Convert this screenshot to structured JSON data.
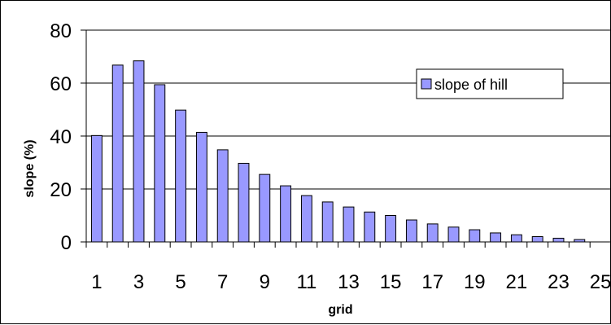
{
  "chart_data": {
    "type": "bar",
    "categories": [
      1,
      2,
      3,
      4,
      5,
      6,
      7,
      8,
      9,
      10,
      11,
      12,
      13,
      14,
      15,
      16,
      17,
      18,
      19,
      20,
      21,
      22,
      23,
      24,
      25
    ],
    "x_tick_labels": [
      "1",
      "3",
      "5",
      "7",
      "9",
      "11",
      "13",
      "15",
      "17",
      "19",
      "21",
      "23",
      "25"
    ],
    "series": [
      {
        "name": "slope of hill",
        "color": "#9999ff",
        "values": [
          40.2,
          66.8,
          68.4,
          59.4,
          49.8,
          41.4,
          34.8,
          29.7,
          25.5,
          21.2,
          17.5,
          15.1,
          13.2,
          11.3,
          10.0,
          8.3,
          6.8,
          5.6,
          4.6,
          3.4,
          2.7,
          2.0,
          1.4,
          0.9,
          0
        ]
      }
    ],
    "title": "",
    "xlabel": "grid",
    "ylabel": "slope (%)",
    "ylim": [
      0,
      80
    ],
    "y_ticks": [
      0,
      20,
      40,
      60,
      80
    ],
    "grid": "horizontal",
    "legend_position": "top-right"
  }
}
